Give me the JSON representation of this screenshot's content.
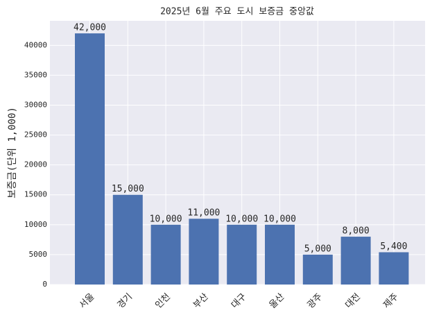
{
  "chart_data": {
    "type": "bar",
    "title": "2025년 6월 주요 도시 보증금 중앙값",
    "y_label": "보증금(단위 1,000)",
    "categories": [
      "서울",
      "경기",
      "인천",
      "부산",
      "대구",
      "울산",
      "광주",
      "대전",
      "제주"
    ],
    "values": [
      42000,
      15000,
      10000,
      11000,
      10000,
      10000,
      5000,
      8000,
      5400
    ],
    "value_labels": [
      "42,000",
      "15,000",
      "10,000",
      "11,000",
      "10,000",
      "10,000",
      "5,000",
      "8,000",
      "5,400"
    ],
    "color": "#4c72b0",
    "ylim": [
      0,
      44100
    ],
    "yticks": [
      0,
      5000,
      10000,
      15000,
      20000,
      25000,
      30000,
      35000,
      40000
    ],
    "grid": true
  }
}
